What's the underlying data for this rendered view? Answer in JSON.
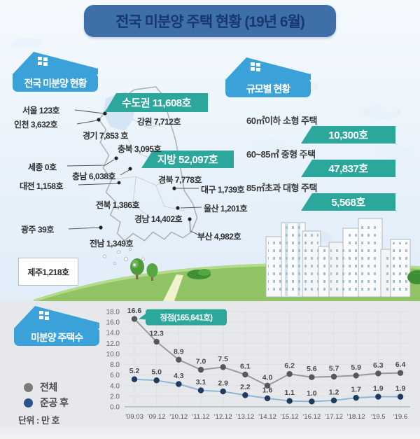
{
  "title": "전국 미분양 주택 현황 (19년 6월)",
  "map_section": {
    "heading": "전국 미분양 현황",
    "metro_banner": "수도권 11,608호",
    "province_banner": "지방 52,097호",
    "labels": [
      {
        "id": "seoul",
        "text": "서울  123호"
      },
      {
        "id": "incheon",
        "text": "인천 3,632호"
      },
      {
        "id": "gyeonggi",
        "text": "경기 7,853 호"
      },
      {
        "id": "gangwon",
        "text": "강원 7,712호"
      },
      {
        "id": "chungbuk",
        "text": "충북 3,095호"
      },
      {
        "id": "sejong",
        "text": "세종 0호"
      },
      {
        "id": "chungnam",
        "text": "충남 6,038호"
      },
      {
        "id": "daejeon",
        "text": "대전 1,158호"
      },
      {
        "id": "gyeongbuk",
        "text": "경북 7,778호"
      },
      {
        "id": "daegu",
        "text": "대구 1,739호"
      },
      {
        "id": "jeonbuk",
        "text": "전북 1,386호"
      },
      {
        "id": "ulsan",
        "text": "울산 1,201호"
      },
      {
        "id": "gyeongnam",
        "text": "경남 14,402호"
      },
      {
        "id": "gwangju",
        "text": "광주 39호"
      },
      {
        "id": "busan",
        "text": "부산 4,982호"
      },
      {
        "id": "jeonnam",
        "text": "전남 1,349호"
      },
      {
        "id": "jeju",
        "text": "제주1,218호"
      }
    ]
  },
  "size_section": {
    "heading": "규모별 현황",
    "items": [
      {
        "label": "60㎡이하 소형 주택",
        "value": "10,300호"
      },
      {
        "label": "60~85㎡ 중형 주택",
        "value": "47,837호"
      },
      {
        "label": "85㎡초과 대형 주택",
        "value": "5,568호"
      }
    ]
  },
  "chart_section": {
    "heading": "미분양 주택수",
    "legend": [
      {
        "name": "전체",
        "color": "#7b7b7b"
      },
      {
        "name": "준공 후",
        "color": "#2b528a"
      }
    ],
    "unit": "단위 : 만 호"
  },
  "chart_data": {
    "type": "line",
    "title": "미분양 주택수",
    "unit": "만 호",
    "categories": [
      "'09.03",
      "'09.12",
      "'10.12",
      "'11.12",
      "'12.12",
      "'13.12",
      "'14.12",
      "'15.12",
      "'16.12",
      "'17.12",
      "'18.12",
      "'19.5",
      "'19.6"
    ],
    "series": [
      {
        "name": "전체",
        "line_color": "#9a9a9a",
        "dot_color": "#575757",
        "values": [
          16.6,
          12.3,
          8.9,
          7.0,
          7.5,
          6.1,
          4.0,
          6.2,
          5.6,
          5.7,
          5.9,
          6.3,
          6.4
        ]
      },
      {
        "name": "준공 후",
        "line_color": "#8fb6d4",
        "dot_color": "#1d3a5f",
        "values": [
          5.2,
          5.0,
          4.3,
          3.1,
          2.9,
          2.2,
          1.6,
          1.1,
          1.0,
          1.2,
          1.7,
          1.9,
          1.9
        ]
      }
    ],
    "ylim": [
      0,
      18
    ],
    "ytick_step": 2,
    "grid": true,
    "legend_position": "left",
    "annotation": {
      "text": "정점(165,641호)",
      "series": 0,
      "target_index": 0
    }
  },
  "colors": {
    "title_blue": "#3e6fa8",
    "title_text": "#17386e",
    "house_blue": "#3ba2d9",
    "teal": "#2ca79b",
    "map_outline": "#b3b3b3",
    "metro_fill": "#d4e6f6",
    "hill_green": "#90c363",
    "gray_line": "#9a9a9a",
    "blue_line": "#8fb6d4",
    "navy_dot": "#1d3a5f"
  }
}
